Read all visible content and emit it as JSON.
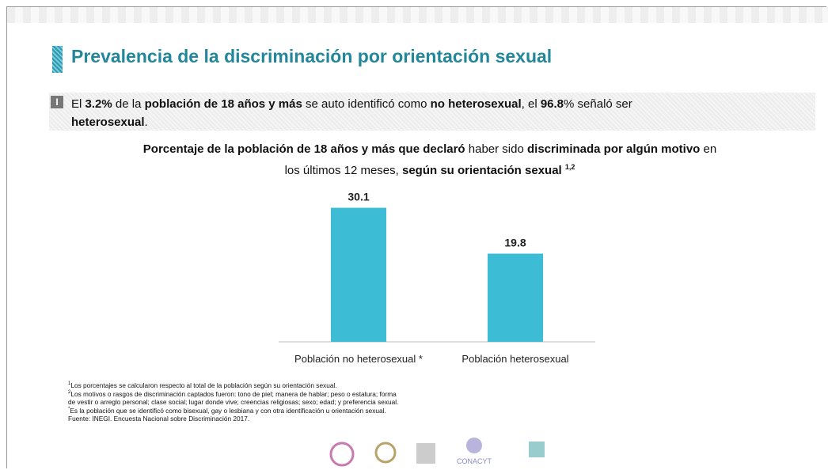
{
  "slide_title": "Prevalencia de la discriminación por orientación sexual",
  "intro": {
    "marker": "I",
    "runs": [
      {
        "text": "El ",
        "bold": false
      },
      {
        "text": "3.2%",
        "bold": true
      },
      {
        "text": " de la ",
        "bold": false
      },
      {
        "text": "población de 18 años y más",
        "bold": true
      },
      {
        "text": " se auto identificó como ",
        "bold": false
      },
      {
        "text": "no heterosexual",
        "bold": true
      },
      {
        "text": ", el ",
        "bold": false
      },
      {
        "text": "96.8",
        "bold": true
      },
      {
        "text": "% señaló ser ",
        "bold": false
      },
      {
        "text": "heterosexual",
        "bold": true
      },
      {
        "text": ".",
        "bold": false
      }
    ]
  },
  "chart_data": {
    "type": "bar",
    "title_runs": [
      {
        "text": "Porcentaje de la población de 18 años y más que declaró",
        "bold": true
      },
      {
        "text": " haber sido ",
        "bold": false
      },
      {
        "text": "discriminada por algún motivo",
        "bold": true
      },
      {
        "text": " en los últimos 12 meses, ",
        "bold": false
      },
      {
        "text": "según su orientación sexual",
        "bold": true
      }
    ],
    "title_note": "1,2",
    "categories": [
      "Población no heterosexual *",
      "Población heterosexual"
    ],
    "values": [
      30.1,
      19.8
    ],
    "color": "#3dbcd5",
    "ylim": [
      0,
      35
    ]
  },
  "footnotes": [
    {
      "mark": "1",
      "text": "Los porcentajes se calcularon respecto al total de la población según su orientación sexual."
    },
    {
      "mark": "2",
      "text": "Los motivos o rasgos de discriminación captados fueron: tono de piel; manera de hablar; peso o estatura; forma de vestir o arreglo personal; clase social; lugar donde vive; creencias religiosas; sexo; edad; y preferencia sexual."
    },
    {
      "mark": "*",
      "text": "Es la población que se identificó como bisexual, gay o lesbiana y con otra identificación u orientación sexual."
    },
    {
      "mark": "",
      "text": "Fuente: INEGI. Encuesta Nacional sobre Discriminación 2017."
    }
  ],
  "logo_text": "CONACYT"
}
